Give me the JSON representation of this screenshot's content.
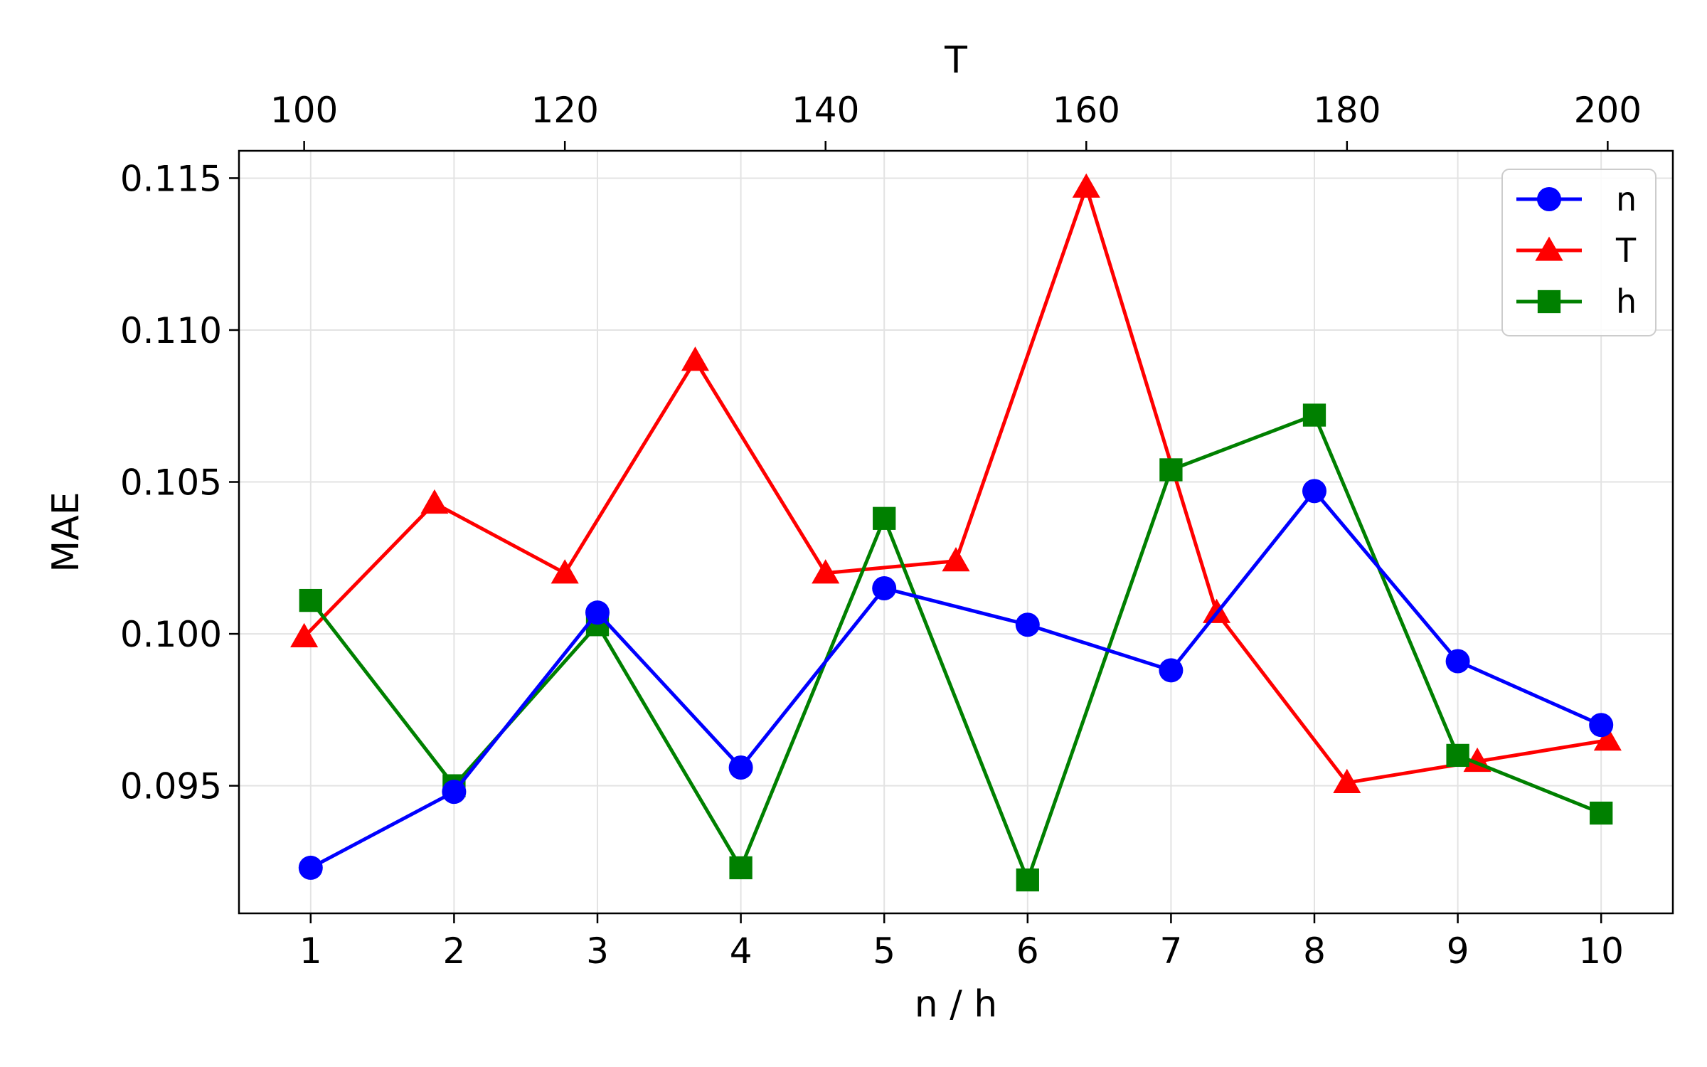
{
  "chart_data": {
    "type": "line",
    "title": "",
    "xlabel": "n / h",
    "ylabel": "MAE",
    "top_xlabel": "T",
    "x": [
      1,
      2,
      3,
      4,
      5,
      6,
      7,
      8,
      9,
      10
    ],
    "xlim": [
      0.5,
      10.5
    ],
    "ylim": [
      0.0908,
      0.1159
    ],
    "xticks": [
      1,
      2,
      3,
      4,
      5,
      6,
      7,
      8,
      9,
      10
    ],
    "yticks": [
      0.095,
      0.1,
      0.105,
      0.11,
      0.115
    ],
    "ytick_labels": [
      "0.095",
      "0.100",
      "0.105",
      "0.110",
      "0.115"
    ],
    "top_xlim": [
      95,
      205
    ],
    "top_xticks": [
      100,
      120,
      140,
      160,
      180,
      200
    ],
    "grid": true,
    "legend_position": "top-right",
    "series": [
      {
        "name": "n",
        "axis": "bottom",
        "marker": "circle",
        "color": "#0000ff",
        "x": [
          1,
          2,
          3,
          4,
          5,
          6,
          7,
          8,
          9,
          10
        ],
        "values": [
          0.0923,
          0.0948,
          0.1007,
          0.0956,
          0.1015,
          0.1003,
          0.0988,
          0.1047,
          0.0991,
          0.097
        ]
      },
      {
        "name": "T",
        "axis": "top",
        "marker": "triangle",
        "color": "#ff0000",
        "x": [
          100,
          110,
          120,
          130,
          140,
          150,
          160,
          170,
          180,
          190,
          200
        ],
        "values": [
          0.0999,
          0.1043,
          0.102,
          0.109,
          0.102,
          0.1024,
          0.1147,
          0.1007,
          0.0951,
          0.0958,
          0.0965
        ]
      },
      {
        "name": "h",
        "axis": "bottom",
        "marker": "square",
        "color": "#008000",
        "x": [
          1,
          2,
          3,
          4,
          5,
          6,
          7,
          8,
          9,
          10
        ],
        "values": [
          0.1011,
          0.095,
          0.1003,
          0.0923,
          0.1038,
          0.0919,
          0.1054,
          0.1072,
          0.096,
          0.0941
        ]
      }
    ]
  }
}
